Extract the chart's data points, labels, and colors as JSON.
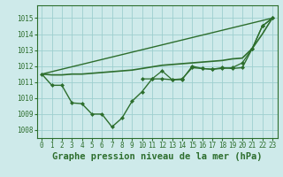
{
  "background_color": "#ceeaea",
  "grid_color": "#9dcfcf",
  "line_color": "#2d6e2d",
  "xlabel": "Graphe pression niveau de la mer (hPa)",
  "xlabel_fontsize": 7.5,
  "ylim": [
    1007.5,
    1015.8
  ],
  "xlim": [
    -0.5,
    23.5
  ],
  "yticks": [
    1008,
    1009,
    1010,
    1011,
    1012,
    1013,
    1014,
    1015
  ],
  "xticks": [
    0,
    1,
    2,
    3,
    4,
    5,
    6,
    7,
    8,
    9,
    10,
    11,
    12,
    13,
    14,
    15,
    16,
    17,
    18,
    19,
    20,
    21,
    22,
    23
  ],
  "line1_x": [
    0,
    1,
    2,
    3,
    4,
    5,
    6,
    7,
    8,
    9,
    10,
    11,
    12,
    13,
    14,
    15,
    16,
    17,
    18,
    19,
    20,
    21,
    22,
    23
  ],
  "line1_y": [
    1011.5,
    1010.8,
    1010.8,
    1009.7,
    1009.65,
    1009.0,
    1009.0,
    1008.2,
    1008.75,
    1009.8,
    1010.4,
    1011.2,
    1011.2,
    1011.15,
    1011.2,
    1011.9,
    1011.85,
    1011.8,
    1011.9,
    1011.85,
    1011.9,
    1013.1,
    1014.5,
    1015.0
  ],
  "line2_x": [
    0,
    23
  ],
  "line2_y": [
    1011.5,
    1015.0
  ],
  "line3_x": [
    0,
    1,
    2,
    3,
    4,
    5,
    6,
    7,
    8,
    9,
    10,
    11,
    12,
    13,
    14,
    15,
    16,
    17,
    18,
    19,
    20,
    21,
    22,
    23
  ],
  "line3_y": [
    1011.5,
    1011.45,
    1011.45,
    1011.5,
    1011.5,
    1011.55,
    1011.6,
    1011.65,
    1011.7,
    1011.75,
    1011.85,
    1011.95,
    1012.05,
    1012.1,
    1012.15,
    1012.2,
    1012.25,
    1012.3,
    1012.35,
    1012.45,
    1012.5,
    1013.1,
    1014.0,
    1015.0
  ],
  "line4_x": [
    10,
    11,
    12,
    13,
    14,
    15,
    16,
    17,
    18,
    19,
    20,
    21,
    22,
    23
  ],
  "line4_y": [
    1011.2,
    1011.2,
    1011.7,
    1011.15,
    1011.15,
    1012.0,
    1011.85,
    1011.8,
    1011.85,
    1011.9,
    1012.2,
    1013.1,
    1014.5,
    1015.0
  ]
}
